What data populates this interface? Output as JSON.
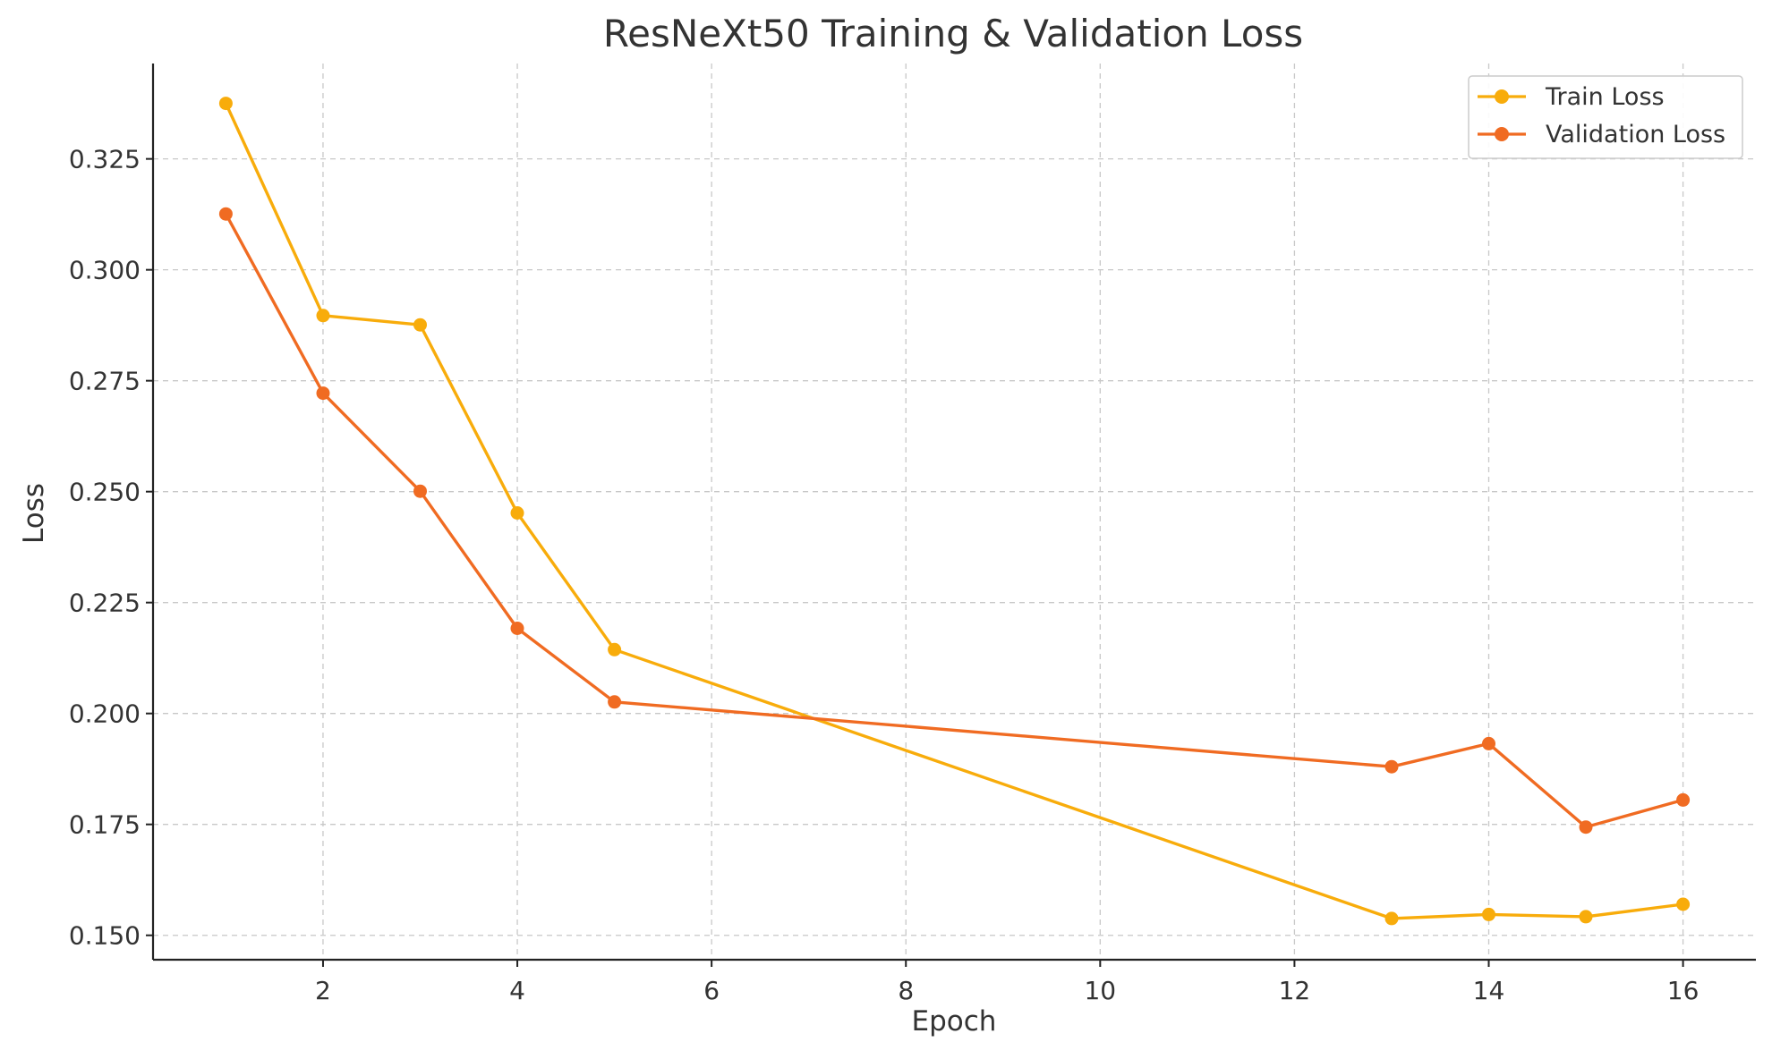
{
  "chart_data": {
    "type": "line",
    "title": "ResNeXt50 Training & Validation Loss",
    "xlabel": "Epoch",
    "ylabel": "Loss",
    "xlim": [
      0.25,
      16.75
    ],
    "ylim": [
      0.1445,
      0.3465
    ],
    "xticks": [
      2,
      4,
      6,
      8,
      10,
      12,
      14,
      16
    ],
    "yticks": [
      0.15,
      0.175,
      0.2,
      0.225,
      0.25,
      0.275,
      0.3,
      0.325
    ],
    "xtick_labels": [
      "2",
      "4",
      "6",
      "8",
      "10",
      "12",
      "14",
      "16"
    ],
    "ytick_labels": [
      "0.150",
      "0.175",
      "0.200",
      "0.225",
      "0.250",
      "0.275",
      "0.300",
      "0.325"
    ],
    "grid": true,
    "legend_position": "top-right",
    "x": [
      1,
      2,
      3,
      4,
      5,
      13,
      14,
      15,
      16
    ],
    "series": [
      {
        "name": "Train Loss",
        "color": "#f8ac0b",
        "values": [
          0.3375,
          0.2897,
          0.2876,
          0.2452,
          0.2144,
          0.1538,
          0.1547,
          0.1542,
          0.157
        ]
      },
      {
        "name": "Validation Loss",
        "color": "#f06b22",
        "values": [
          0.3126,
          0.2722,
          0.2501,
          0.2192,
          0.2026,
          0.188,
          0.1932,
          0.1744,
          0.1805
        ]
      }
    ]
  }
}
